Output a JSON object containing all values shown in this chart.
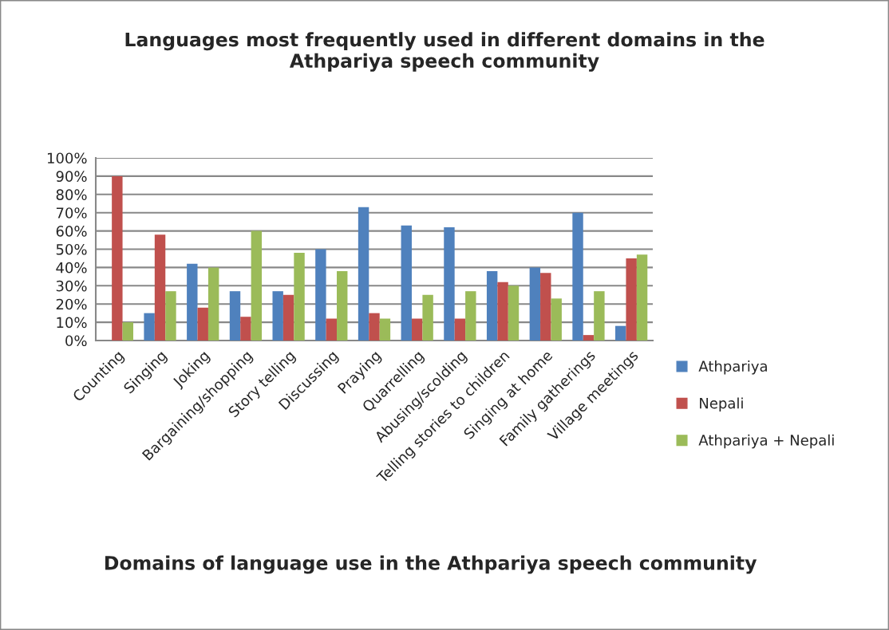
{
  "chart_data": {
    "type": "bar",
    "title": "Languages most frequently used in different domains in the\nAthpariya speech community",
    "xlabel": "Domains of language use in the Athpariya speech community",
    "categories": [
      "Counting",
      "Singing",
      "Joking",
      "Bargaining/shopping",
      "Story telling",
      "Discussing",
      "Praying",
      "Quarrelling",
      "Abusing/scolding",
      "Telling stories to children",
      "Singing at home",
      "Family gatherings",
      "Village meetings"
    ],
    "series": [
      {
        "name": "Athpariya",
        "color": "#4f81bd",
        "values": [
          null,
          15,
          42,
          27,
          27,
          50,
          73,
          63,
          62,
          38,
          40,
          70,
          8
        ]
      },
      {
        "name": "Nepali",
        "color": "#c0504d",
        "values": [
          90,
          58,
          18,
          13,
          25,
          12,
          15,
          12,
          12,
          32,
          37,
          3,
          45
        ]
      },
      {
        "name": "Athpariya + Nepali",
        "color": "#9bbb59",
        "values": [
          10,
          27,
          40,
          60,
          48,
          38,
          12,
          25,
          27,
          30,
          23,
          27,
          47
        ]
      }
    ],
    "ylim": [
      0,
      100
    ],
    "yticks": [
      {
        "value": 0,
        "label": "0%"
      },
      {
        "value": 10,
        "label": "10%"
      },
      {
        "value": 20,
        "label": "20%"
      },
      {
        "value": 30,
        "label": "30%"
      },
      {
        "value": 40,
        "label": "40%"
      },
      {
        "value": 50,
        "label": "50%"
      },
      {
        "value": 60,
        "label": "60%"
      },
      {
        "value": 70,
        "label": "70%"
      },
      {
        "value": 80,
        "label": "80%"
      },
      {
        "value": 90,
        "label": "90%"
      },
      {
        "value": 100,
        "label": "100%"
      }
    ],
    "grid": "y",
    "legend": "right"
  }
}
